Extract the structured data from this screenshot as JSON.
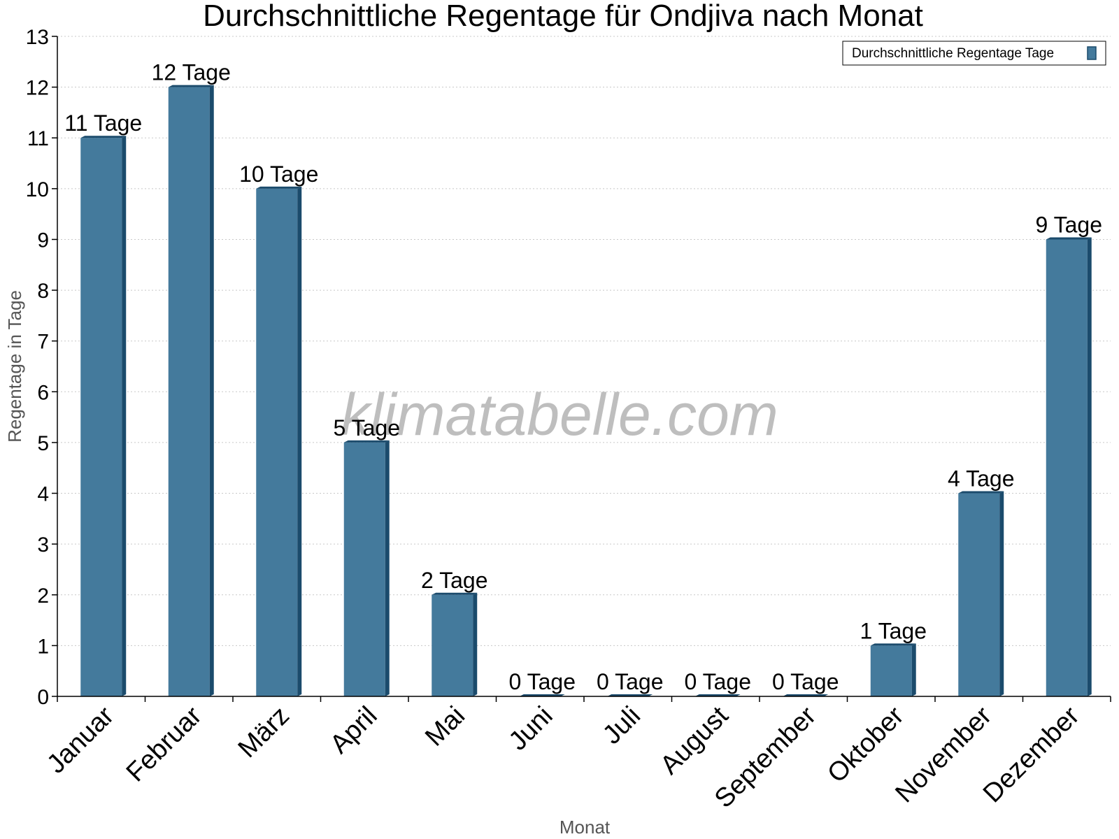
{
  "chart_data": {
    "type": "bar",
    "title": "Durchschnittliche Regentage für Ondjiva nach Monat",
    "xlabel": "Monat",
    "ylabel": "Regentage in Tage",
    "categories": [
      "Januar",
      "Februar",
      "März",
      "April",
      "Mai",
      "Juni",
      "Juli",
      "August",
      "September",
      "Oktober",
      "November",
      "Dezember"
    ],
    "series": [
      {
        "name": "Durchschnittliche Regentage Tage",
        "values": [
          11,
          12,
          10,
          5,
          2,
          0,
          0,
          0,
          0,
          1,
          4,
          9
        ],
        "labels": [
          "11 Tage",
          "12 Tage",
          "10 Tage",
          "5 Tage",
          "2 Tage",
          "0 Tage",
          "0 Tage",
          "0 Tage",
          "0 Tage",
          "1 Tage",
          "4 Tage",
          "9 Tage"
        ]
      }
    ],
    "ylim": [
      0,
      13
    ],
    "yticks": [
      "0",
      "1",
      "2",
      "3",
      "4",
      "5",
      "6",
      "7",
      "8",
      "9",
      "10",
      "11",
      "12",
      "13"
    ],
    "grid": true,
    "legend_position": "top-right",
    "colors": {
      "bar": "#447a9c",
      "bar_side": "#1b4b6c",
      "grid": "#c8c8c8"
    }
  },
  "watermark": "klimatabelle.com"
}
